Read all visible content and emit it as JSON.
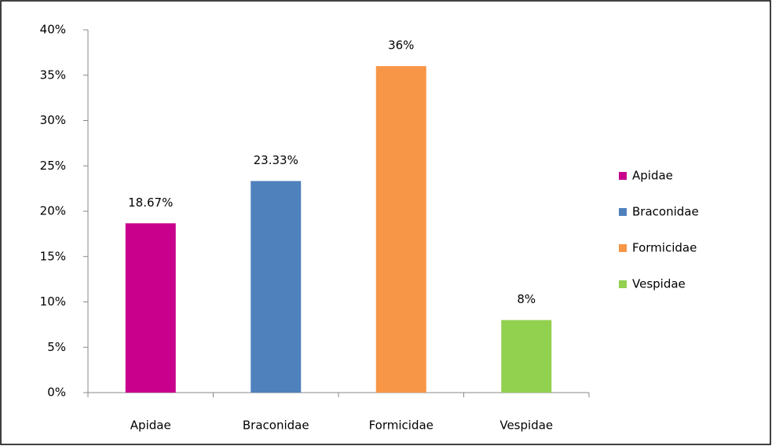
{
  "chart_data": {
    "type": "bar",
    "categories": [
      "Apidae",
      "Braconidae",
      "Formicidae",
      "Vespidae"
    ],
    "values": [
      18.67,
      23.33,
      36,
      8
    ],
    "value_labels": [
      "18.67%",
      "23.33%",
      "36%",
      "8%"
    ],
    "colors": [
      "#c8008c",
      "#4f81bd",
      "#f79646",
      "#92d050"
    ],
    "ylim": [
      0,
      40
    ],
    "yticks": [
      {
        "value": 0,
        "label": "0%"
      },
      {
        "value": 5,
        "label": "5%"
      },
      {
        "value": 10,
        "label": "10%"
      },
      {
        "value": 15,
        "label": "15%"
      },
      {
        "value": 20,
        "label": "20%"
      },
      {
        "value": 25,
        "label": "25%"
      },
      {
        "value": 30,
        "label": "30%"
      },
      {
        "value": 35,
        "label": "35%"
      },
      {
        "value": 40,
        "label": "40%"
      }
    ],
    "grid": false,
    "legend": "right"
  }
}
